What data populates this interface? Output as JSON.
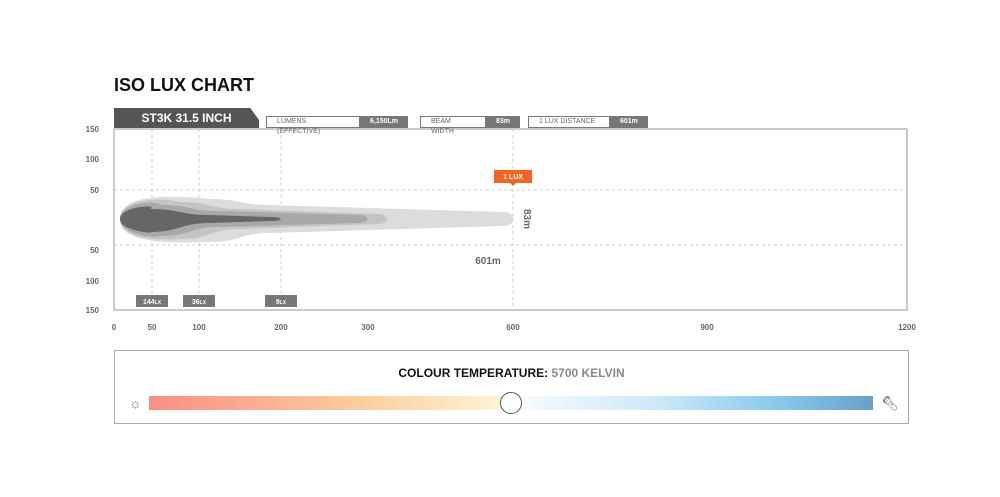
{
  "title": "ISO LUX CHART",
  "product": "ST3K 31.5 INCH",
  "stats": [
    {
      "label": "LUMENS (EFFECTIVE)",
      "value": "6,150Lm"
    },
    {
      "label": "BEAM WIDTH",
      "value": "83m"
    },
    {
      "label": "1 LUX DISTANCE",
      "value": "601m"
    }
  ],
  "chart_data": {
    "type": "area",
    "x_ticks": [
      0,
      50,
      100,
      200,
      300,
      600,
      900,
      1200
    ],
    "y_ticks": [
      "150",
      "100",
      "50",
      "",
      "50",
      "100",
      "150"
    ],
    "xlim": [
      0,
      1200
    ],
    "ylim": [
      -150,
      150
    ],
    "grid": "dashed",
    "contours": [
      {
        "lux": "1",
        "reach_m": 601
      },
      {
        "lux": "9",
        "reach_m": 340
      },
      {
        "lux": "36",
        "reach_m": 300
      },
      {
        "lux": "144",
        "reach_m": 200
      }
    ],
    "lux_labels": [
      {
        "text": "144",
        "unit": "LX",
        "x": 50
      },
      {
        "text": "36",
        "unit": "LX",
        "x": 100
      },
      {
        "text": "9",
        "unit": "LX",
        "x": 200
      }
    ],
    "marker": {
      "label": "1 LUX",
      "color": "#f26522",
      "x": 600
    },
    "beam_width_label": "83m",
    "distance_label": "601m"
  },
  "colour_temperature": {
    "label": "COLOUR TEMPERATURE:",
    "value": "5700 KELVIN",
    "position": 0.5,
    "left_icon": "sun-icon",
    "right_icon": "flashlight-icon"
  }
}
